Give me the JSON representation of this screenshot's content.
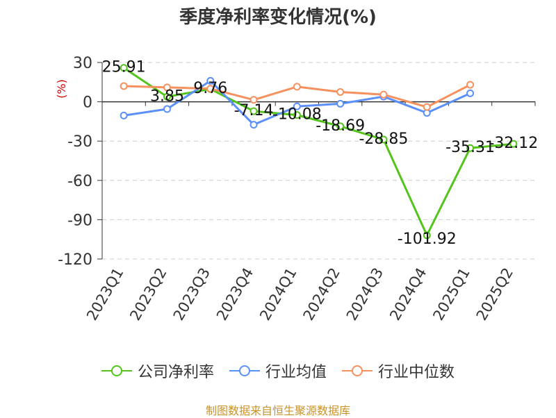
{
  "chart_data": {
    "type": "line",
    "title": "季度净利率变化情况(%)",
    "ylabel": "(%)",
    "categories": [
      "2023Q1",
      "2023Q2",
      "2023Q3",
      "2023Q4",
      "2024Q1",
      "2024Q2",
      "2024Q3",
      "2024Q4",
      "2025Q1",
      "2025Q2"
    ],
    "yticks": [
      30,
      0,
      -30,
      -60,
      -90,
      -120
    ],
    "ylim": [
      -120,
      30
    ],
    "grid": true,
    "legend_position": "bottom",
    "series": [
      {
        "name": "公司净利率",
        "color": "#52c41a",
        "values": [
          25.91,
          3.85,
          9.76,
          -7.14,
          -10.08,
          -18.69,
          -28.85,
          -101.92,
          -35.31,
          -32.12
        ],
        "labels": [
          "25.91",
          "3.85",
          "9.76",
          "-7.14",
          "-10.08",
          "-18.69",
          "-28.85",
          "-101.92",
          "-35.31",
          "-32.12"
        ]
      },
      {
        "name": "行业均值",
        "color": "#5b8ff9",
        "values": [
          -10.5,
          -5.5,
          16.0,
          -17.5,
          -3.5,
          -1.5,
          4.0,
          -8.5,
          6.5,
          null
        ]
      },
      {
        "name": "行业中位数",
        "color": "#f6905e",
        "values": [
          12.0,
          11.0,
          10.0,
          1.5,
          11.5,
          7.5,
          5.5,
          -4.0,
          13.0,
          null
        ]
      }
    ]
  },
  "footer": "制图数据来自恒生聚源数据库"
}
